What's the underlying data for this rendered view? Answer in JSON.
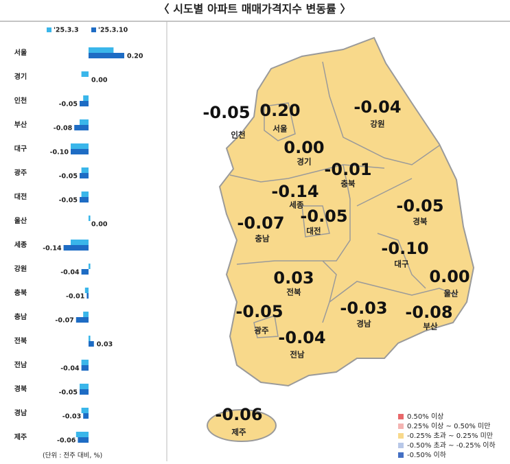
{
  "title": "〈 시도별 아파트 매매가격지수 변동률 〉",
  "chart_data": [
    {
      "type": "bar",
      "orientation": "horizontal",
      "categories": [
        "서울",
        "경기",
        "인천",
        "부산",
        "대구",
        "광주",
        "대전",
        "울산",
        "세종",
        "강원",
        "충북",
        "충남",
        "전북",
        "전남",
        "경북",
        "경남",
        "제주"
      ],
      "series": [
        {
          "name": "'25.3.3",
          "color": "#3ab6ea",
          "values": [
            0.14,
            -0.04,
            -0.03,
            -0.05,
            -0.1,
            -0.04,
            -0.04,
            0.01,
            -0.1,
            0.01,
            -0.02,
            -0.03,
            0.01,
            -0.04,
            -0.05,
            -0.04,
            -0.07
          ]
        },
        {
          "name": "'25.3.10",
          "color": "#1e6cc4",
          "values": [
            0.2,
            0.0,
            -0.05,
            -0.08,
            -0.1,
            -0.05,
            -0.05,
            0.0,
            -0.14,
            -0.04,
            -0.01,
            -0.07,
            0.03,
            -0.04,
            -0.05,
            -0.03,
            -0.06
          ],
          "value_labels": [
            "0.20",
            "0.00",
            "-0.05",
            "-0.08",
            "-0.10",
            "-0.05",
            "-0.05",
            "0.00",
            "-0.14",
            "-0.04",
            "-0.01",
            "-0.07",
            "0.03",
            "-0.04",
            "-0.05",
            "-0.03",
            "-0.06"
          ]
        }
      ],
      "xlim": [
        -0.2,
        0.25
      ],
      "note": "(단위 : 전주 대비, %)"
    },
    {
      "type": "map",
      "color": "#f8d98b",
      "regions": [
        {
          "name": "인천",
          "value": -0.05,
          "value_label": "-0.05"
        },
        {
          "name": "서울",
          "value": 0.2,
          "value_label": "0.20"
        },
        {
          "name": "강원",
          "value": -0.04,
          "value_label": "-0.04"
        },
        {
          "name": "경기",
          "value": 0.0,
          "value_label": "0.00"
        },
        {
          "name": "충북",
          "value": -0.01,
          "value_label": "-0.01"
        },
        {
          "name": "세종",
          "value": -0.14,
          "value_label": "-0.14"
        },
        {
          "name": "대전",
          "value": -0.05,
          "value_label": "-0.05"
        },
        {
          "name": "충남",
          "value": -0.07,
          "value_label": "-0.07"
        },
        {
          "name": "경북",
          "value": -0.05,
          "value_label": "-0.05"
        },
        {
          "name": "대구",
          "value": -0.1,
          "value_label": "-0.10"
        },
        {
          "name": "울산",
          "value": 0.0,
          "value_label": "0.00"
        },
        {
          "name": "전북",
          "value": 0.03,
          "value_label": "0.03"
        },
        {
          "name": "경남",
          "value": -0.03,
          "value_label": "-0.03"
        },
        {
          "name": "부산",
          "value": -0.08,
          "value_label": "-0.08"
        },
        {
          "name": "광주",
          "value": -0.05,
          "value_label": "-0.05"
        },
        {
          "name": "전남",
          "value": -0.04,
          "value_label": "-0.04"
        },
        {
          "name": "제주",
          "value": -0.06,
          "value_label": "-0.06"
        }
      ],
      "legend": [
        {
          "label": "0.50% 이상",
          "color": "#e8686a"
        },
        {
          "label": "0.25% 이상 ~ 0.50% 미만",
          "color": "#f4b4b2"
        },
        {
          "label": "-0.25% 초과 ~ 0.25% 미만",
          "color": "#f8d98b"
        },
        {
          "label": "-0.50% 초과 ~ -0.25% 이하",
          "color": "#b8c8e8"
        },
        {
          "label": "-0.50% 이하",
          "color": "#4470c4"
        }
      ]
    }
  ]
}
